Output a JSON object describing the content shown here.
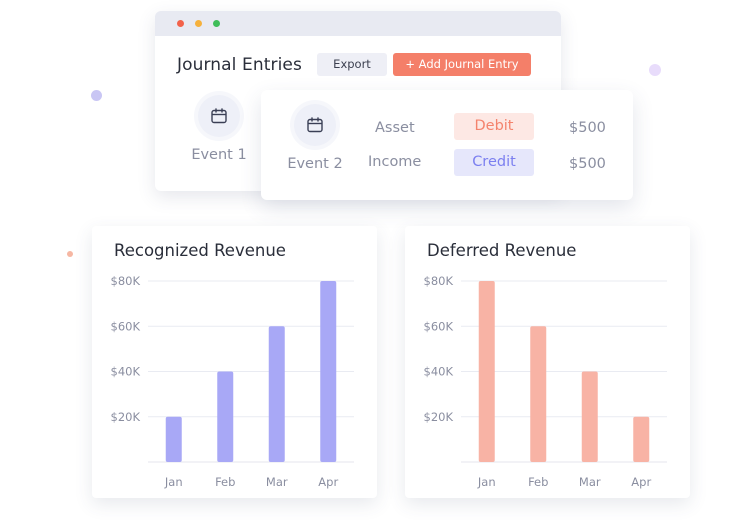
{
  "window": {
    "title": "Journal Entries",
    "export_label": "Export",
    "add_label": "+ Add Journal Entry"
  },
  "events": {
    "event1": "Event 1",
    "event2": "Event 2"
  },
  "entries": [
    {
      "account": "Asset",
      "type": "Debit",
      "amount": "$500"
    },
    {
      "account": "Income",
      "type": "Credit",
      "amount": "$500"
    }
  ],
  "colors": {
    "accent_orange": "#f47f69",
    "recognized_bar": "#a8a8f6",
    "deferred_bar": "#f8b3a5"
  },
  "chart_data": [
    {
      "type": "bar",
      "title": "Recognized Revenue",
      "categories": [
        "Jan",
        "Feb",
        "Mar",
        "Apr"
      ],
      "values": [
        20000,
        40000,
        60000,
        80000
      ],
      "yticks": [
        20000,
        40000,
        60000,
        80000
      ],
      "ytick_labels": [
        "$20K",
        "$40K",
        "$60K",
        "$80K"
      ],
      "ylim": [
        0,
        80000
      ],
      "grid": true
    },
    {
      "type": "bar",
      "title": "Deferred Revenue",
      "categories": [
        "Jan",
        "Feb",
        "Mar",
        "Apr"
      ],
      "values": [
        80000,
        60000,
        40000,
        20000
      ],
      "yticks": [
        20000,
        40000,
        60000,
        80000
      ],
      "ytick_labels": [
        "$20K",
        "$40K",
        "$60K",
        "$80K"
      ],
      "ylim": [
        0,
        80000
      ],
      "grid": true
    }
  ]
}
